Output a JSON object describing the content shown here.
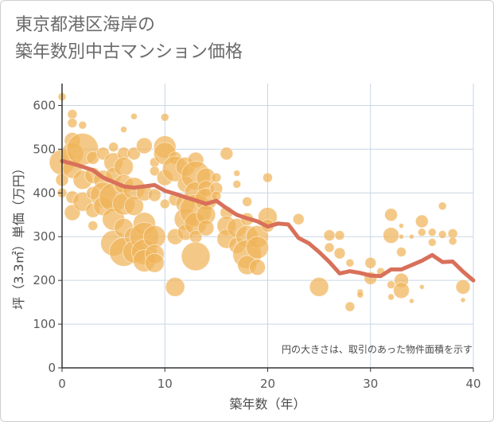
{
  "title_lines": [
    "東京都港区海岸の",
    "築年数別中古マンション価格"
  ],
  "chart_data": {
    "type": "scatter",
    "xlabel": "築年数（年）",
    "ylabel": "坪（3.3㎡）単価（万円）",
    "xlim": [
      0,
      40
    ],
    "ylim": [
      0,
      650
    ],
    "xticks": [
      0,
      10,
      20,
      30,
      40
    ],
    "yticks": [
      0,
      100,
      200,
      300,
      400,
      500,
      600
    ],
    "grid": true,
    "annotation": "円の大きさは、取引のあった物件面積を示す",
    "colors": {
      "bubble": "#f0b45a",
      "line": "#d8705a",
      "grid": "#c9d6e6"
    },
    "trend_line": {
      "x": [
        0,
        1,
        2,
        3,
        4,
        5,
        6,
        7,
        8,
        9,
        10,
        11,
        12,
        13,
        14,
        15,
        16,
        17,
        18,
        19,
        20,
        21,
        22,
        23,
        24,
        25,
        26,
        27,
        28,
        29,
        30,
        31,
        32,
        33,
        34,
        35,
        36,
        37,
        38,
        39,
        40
      ],
      "y": [
        473,
        467,
        460,
        452,
        435,
        425,
        415,
        412,
        415,
        418,
        405,
        398,
        390,
        383,
        375,
        382,
        365,
        350,
        342,
        335,
        323,
        330,
        328,
        297,
        285,
        265,
        242,
        216,
        221,
        217,
        211,
        210,
        225,
        225,
        235,
        245,
        258,
        242,
        243,
        220,
        200
      ]
    },
    "points": [
      {
        "x": 0,
        "y": 620,
        "s": 5
      },
      {
        "x": 0,
        "y": 470,
        "s": 16
      },
      {
        "x": 0,
        "y": 430,
        "s": 8
      },
      {
        "x": 0,
        "y": 400,
        "s": 6
      },
      {
        "x": 1,
        "y": 580,
        "s": 6
      },
      {
        "x": 1,
        "y": 560,
        "s": 6
      },
      {
        "x": 1,
        "y": 520,
        "s": 10
      },
      {
        "x": 1,
        "y": 490,
        "s": 14
      },
      {
        "x": 1,
        "y": 455,
        "s": 12
      },
      {
        "x": 1,
        "y": 390,
        "s": 8
      },
      {
        "x": 1,
        "y": 355,
        "s": 10
      },
      {
        "x": 2,
        "y": 555,
        "s": 5
      },
      {
        "x": 2,
        "y": 500,
        "s": 20
      },
      {
        "x": 2,
        "y": 430,
        "s": 12
      },
      {
        "x": 2,
        "y": 380,
        "s": 12
      },
      {
        "x": 3,
        "y": 480,
        "s": 8
      },
      {
        "x": 3,
        "y": 440,
        "s": 10
      },
      {
        "x": 3,
        "y": 400,
        "s": 8
      },
      {
        "x": 3,
        "y": 360,
        "s": 9
      },
      {
        "x": 3,
        "y": 325,
        "s": 6
      },
      {
        "x": 4,
        "y": 490,
        "s": 8
      },
      {
        "x": 4,
        "y": 430,
        "s": 12
      },
      {
        "x": 4,
        "y": 395,
        "s": 16
      },
      {
        "x": 4,
        "y": 370,
        "s": 12
      },
      {
        "x": 5,
        "y": 505,
        "s": 6
      },
      {
        "x": 5,
        "y": 470,
        "s": 12
      },
      {
        "x": 5,
        "y": 440,
        "s": 10
      },
      {
        "x": 5,
        "y": 390,
        "s": 18
      },
      {
        "x": 5,
        "y": 340,
        "s": 14
      },
      {
        "x": 5,
        "y": 285,
        "s": 16
      },
      {
        "x": 6,
        "y": 545,
        "s": 4
      },
      {
        "x": 6,
        "y": 490,
        "s": 8
      },
      {
        "x": 6,
        "y": 460,
        "s": 12
      },
      {
        "x": 6,
        "y": 420,
        "s": 12
      },
      {
        "x": 6,
        "y": 375,
        "s": 14
      },
      {
        "x": 6,
        "y": 320,
        "s": 12
      },
      {
        "x": 6,
        "y": 265,
        "s": 18
      },
      {
        "x": 7,
        "y": 575,
        "s": 4
      },
      {
        "x": 7,
        "y": 490,
        "s": 8
      },
      {
        "x": 7,
        "y": 410,
        "s": 14
      },
      {
        "x": 7,
        "y": 370,
        "s": 12
      },
      {
        "x": 7,
        "y": 300,
        "s": 12
      },
      {
        "x": 7,
        "y": 265,
        "s": 14
      },
      {
        "x": 8,
        "y": 508,
        "s": 10
      },
      {
        "x": 8,
        "y": 400,
        "s": 10
      },
      {
        "x": 8,
        "y": 330,
        "s": 14
      },
      {
        "x": 8,
        "y": 300,
        "s": 18
      },
      {
        "x": 8,
        "y": 265,
        "s": 16
      },
      {
        "x": 8,
        "y": 245,
        "s": 14
      },
      {
        "x": 9,
        "y": 470,
        "s": 6
      },
      {
        "x": 9,
        "y": 450,
        "s": 6
      },
      {
        "x": 9,
        "y": 395,
        "s": 8
      },
      {
        "x": 9,
        "y": 300,
        "s": 14
      },
      {
        "x": 9,
        "y": 260,
        "s": 12
      },
      {
        "x": 9,
        "y": 240,
        "s": 12
      },
      {
        "x": 10,
        "y": 573,
        "s": 5
      },
      {
        "x": 10,
        "y": 505,
        "s": 14
      },
      {
        "x": 10,
        "y": 490,
        "s": 14
      },
      {
        "x": 10,
        "y": 435,
        "s": 10
      },
      {
        "x": 10,
        "y": 375,
        "s": 6
      },
      {
        "x": 11,
        "y": 480,
        "s": 8
      },
      {
        "x": 11,
        "y": 455,
        "s": 16
      },
      {
        "x": 11,
        "y": 385,
        "s": 8
      },
      {
        "x": 11,
        "y": 300,
        "s": 10
      },
      {
        "x": 11,
        "y": 185,
        "s": 12
      },
      {
        "x": 12,
        "y": 460,
        "s": 12
      },
      {
        "x": 12,
        "y": 420,
        "s": 10
      },
      {
        "x": 12,
        "y": 375,
        "s": 12
      },
      {
        "x": 12,
        "y": 340,
        "s": 14
      },
      {
        "x": 12,
        "y": 310,
        "s": 10
      },
      {
        "x": 13,
        "y": 475,
        "s": 10
      },
      {
        "x": 13,
        "y": 440,
        "s": 18
      },
      {
        "x": 13,
        "y": 400,
        "s": 14
      },
      {
        "x": 13,
        "y": 360,
        "s": 20
      },
      {
        "x": 13,
        "y": 330,
        "s": 14
      },
      {
        "x": 13,
        "y": 300,
        "s": 8
      },
      {
        "x": 13,
        "y": 255,
        "s": 18
      },
      {
        "x": 14,
        "y": 435,
        "s": 12
      },
      {
        "x": 14,
        "y": 410,
        "s": 10
      },
      {
        "x": 14,
        "y": 385,
        "s": 14
      },
      {
        "x": 14,
        "y": 350,
        "s": 12
      },
      {
        "x": 14,
        "y": 320,
        "s": 10
      },
      {
        "x": 15,
        "y": 435,
        "s": 6
      },
      {
        "x": 15,
        "y": 410,
        "s": 8
      },
      {
        "x": 15,
        "y": 393,
        "s": 6
      },
      {
        "x": 16,
        "y": 490,
        "s": 8
      },
      {
        "x": 16,
        "y": 355,
        "s": 8
      },
      {
        "x": 16,
        "y": 325,
        "s": 12
      },
      {
        "x": 16,
        "y": 295,
        "s": 12
      },
      {
        "x": 17,
        "y": 445,
        "s": 4
      },
      {
        "x": 17,
        "y": 420,
        "s": 5
      },
      {
        "x": 17,
        "y": 320,
        "s": 12
      },
      {
        "x": 17,
        "y": 280,
        "s": 10
      },
      {
        "x": 18,
        "y": 380,
        "s": 6
      },
      {
        "x": 18,
        "y": 340,
        "s": 8
      },
      {
        "x": 18,
        "y": 300,
        "s": 14
      },
      {
        "x": 18,
        "y": 260,
        "s": 18
      },
      {
        "x": 18,
        "y": 235,
        "s": 12
      },
      {
        "x": 19,
        "y": 300,
        "s": 14
      },
      {
        "x": 19,
        "y": 275,
        "s": 14
      },
      {
        "x": 19,
        "y": 230,
        "s": 10
      },
      {
        "x": 20,
        "y": 435,
        "s": 6
      },
      {
        "x": 20,
        "y": 345,
        "s": 12
      },
      {
        "x": 20,
        "y": 325,
        "s": 8
      },
      {
        "x": 23,
        "y": 340,
        "s": 7
      },
      {
        "x": 25,
        "y": 185,
        "s": 12
      },
      {
        "x": 26,
        "y": 303,
        "s": 7
      },
      {
        "x": 26,
        "y": 275,
        "s": 6
      },
      {
        "x": 27,
        "y": 303,
        "s": 6
      },
      {
        "x": 27,
        "y": 262,
        "s": 7
      },
      {
        "x": 28,
        "y": 240,
        "s": 5
      },
      {
        "x": 28,
        "y": 140,
        "s": 6
      },
      {
        "x": 29,
        "y": 173,
        "s": 4
      },
      {
        "x": 29,
        "y": 167,
        "s": 4
      },
      {
        "x": 30,
        "y": 240,
        "s": 7
      },
      {
        "x": 30,
        "y": 205,
        "s": 8
      },
      {
        "x": 31,
        "y": 220,
        "s": 5
      },
      {
        "x": 32,
        "y": 350,
        "s": 8
      },
      {
        "x": 32,
        "y": 303,
        "s": 10
      },
      {
        "x": 32,
        "y": 190,
        "s": 5
      },
      {
        "x": 32,
        "y": 162,
        "s": 4
      },
      {
        "x": 33,
        "y": 325,
        "s": 3
      },
      {
        "x": 33,
        "y": 300,
        "s": 3
      },
      {
        "x": 33,
        "y": 265,
        "s": 6
      },
      {
        "x": 33,
        "y": 200,
        "s": 9
      },
      {
        "x": 33,
        "y": 177,
        "s": 10
      },
      {
        "x": 34,
        "y": 300,
        "s": 3
      },
      {
        "x": 34,
        "y": 153,
        "s": 3
      },
      {
        "x": 35,
        "y": 335,
        "s": 8
      },
      {
        "x": 35,
        "y": 310,
        "s": 5
      },
      {
        "x": 35,
        "y": 185,
        "s": 3
      },
      {
        "x": 36,
        "y": 310,
        "s": 5
      },
      {
        "x": 36,
        "y": 287,
        "s": 5
      },
      {
        "x": 37,
        "y": 370,
        "s": 5
      },
      {
        "x": 37,
        "y": 305,
        "s": 5
      },
      {
        "x": 38,
        "y": 307,
        "s": 6
      },
      {
        "x": 38,
        "y": 290,
        "s": 5
      },
      {
        "x": 39,
        "y": 185,
        "s": 9
      },
      {
        "x": 39,
        "y": 155,
        "s": 3
      }
    ]
  }
}
